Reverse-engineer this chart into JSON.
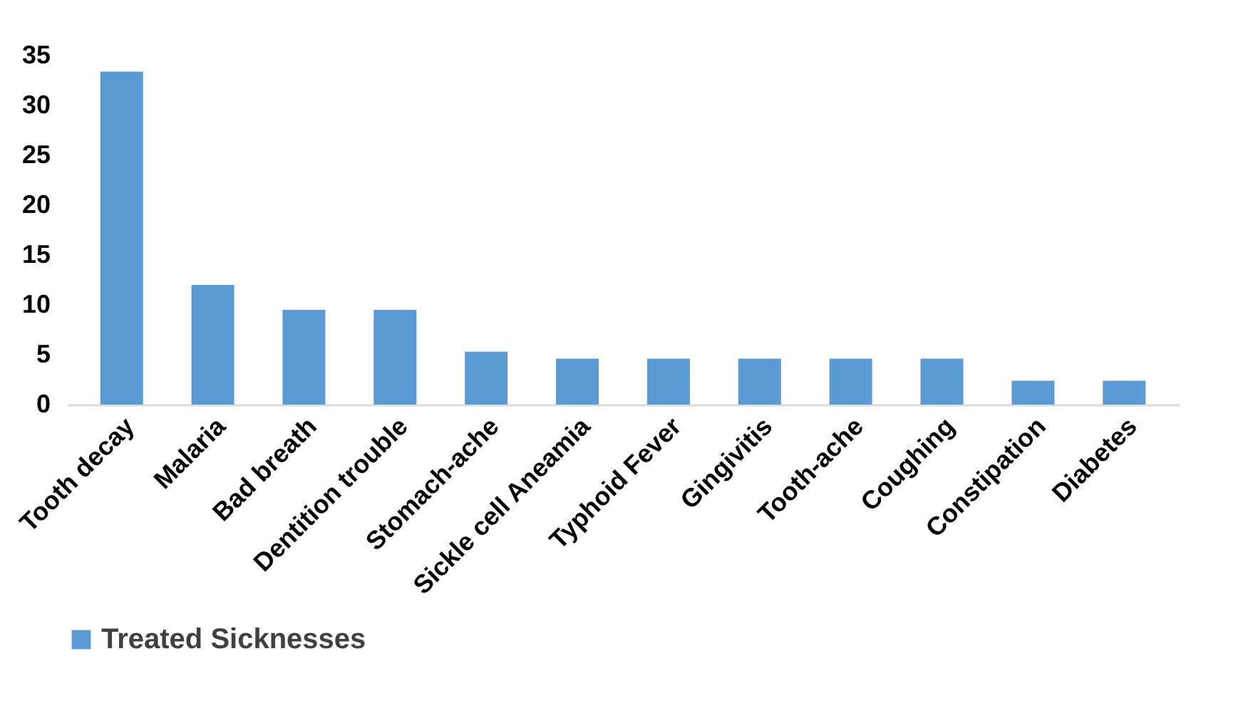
{
  "chart_data": {
    "type": "bar",
    "categories": [
      "Tooth decay",
      "Malaria",
      "Bad breath",
      "Dentition trouble",
      "Stomach-ache",
      "Sickle cell Aneamia",
      "Typhoid Fever",
      "Gingivitis",
      "Tooth-ache",
      "Coughing",
      "Constipation",
      "Diabetes"
    ],
    "series": [
      {
        "name": "Treated Sicknesses",
        "color": "#5b9bd5",
        "values": [
          33.4,
          12.0,
          9.5,
          9.5,
          5.3,
          4.6,
          4.6,
          4.6,
          4.6,
          4.6,
          2.4,
          2.4
        ]
      }
    ],
    "ylim": [
      0,
      35
    ],
    "yticks": [
      0,
      5,
      10,
      15,
      20,
      25,
      30,
      35
    ],
    "grid": false,
    "legend": "bottom"
  }
}
